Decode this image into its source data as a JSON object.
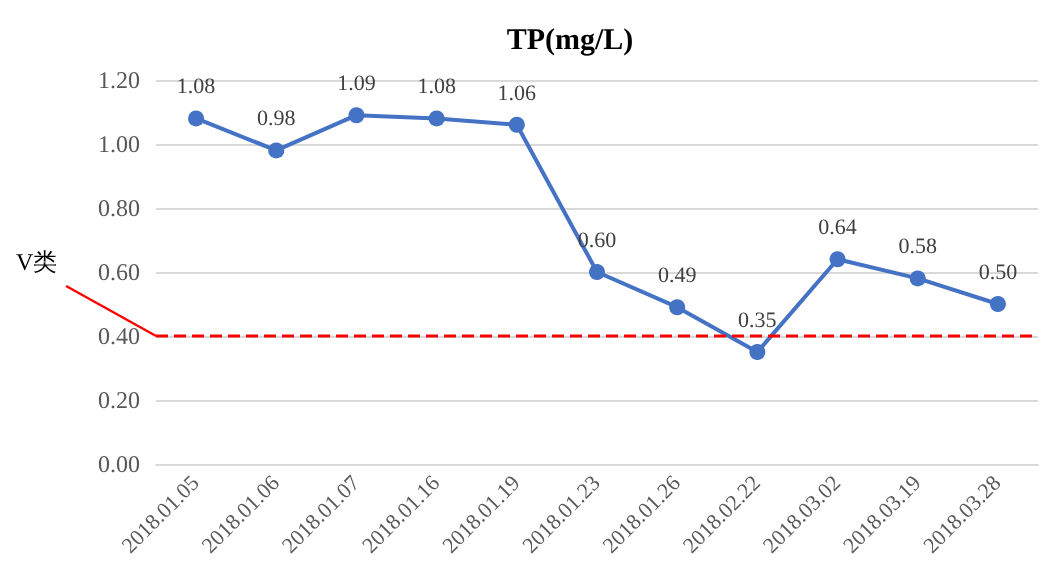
{
  "chart_data": {
    "type": "line",
    "title": "TP(mg/L)",
    "categories": [
      "2018.01.05",
      "2018.01.06",
      "2018.01.07",
      "2018.01.16",
      "2018.01.19",
      "2018.01.23",
      "2018.01.26",
      "2018.02.22",
      "2018.03.02",
      "2018.03.19",
      "2018.03.28"
    ],
    "series": [
      {
        "color": "#4472c4",
        "values": [
          1.08,
          0.98,
          1.09,
          1.08,
          1.06,
          0.6,
          0.49,
          0.35,
          0.64,
          0.58,
          0.5
        ],
        "value_labels": [
          "1.08",
          "0.98",
          "1.09",
          "1.08",
          "1.06",
          "0.60",
          "0.49",
          "0.35",
          "0.64",
          "0.58",
          "0.50"
        ]
      }
    ],
    "ylim": [
      0,
      1.2
    ],
    "yticks": [
      {
        "value": 0,
        "label": "0.00"
      },
      {
        "value": 0.2,
        "label": "0.20"
      },
      {
        "value": 0.4,
        "label": "0.40"
      },
      {
        "value": 0.6,
        "label": "0.60"
      },
      {
        "value": 0.8,
        "label": "0.80"
      },
      {
        "value": 1,
        "label": "1.00"
      },
      {
        "value": 1.2,
        "label": "1.20"
      }
    ],
    "ref_lines": [
      {
        "axis": "y",
        "value": 0.4,
        "label": "V类",
        "color": "#ff0000",
        "line_style": "dashed"
      }
    ],
    "grid": "y",
    "marker": "circle",
    "line_style": "solid"
  }
}
